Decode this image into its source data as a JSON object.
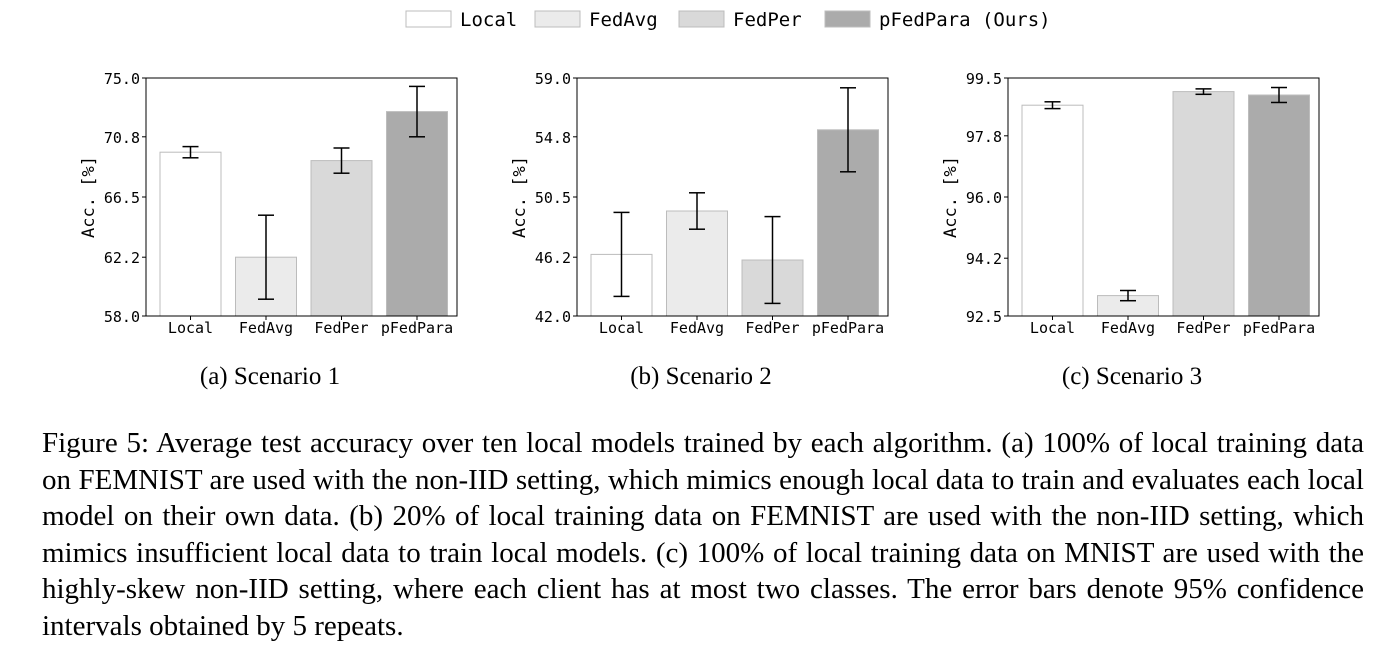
{
  "legend": [
    {
      "label": "Local",
      "color": "#ffffff"
    },
    {
      "label": "FedAvg",
      "color": "#ebebeb"
    },
    {
      "label": "FedPer",
      "color": "#d9d9d9"
    },
    {
      "label": "pFedPara (Ours)",
      "color": "#ababab"
    }
  ],
  "chart_data": [
    {
      "type": "bar",
      "subcaption": "(a) Scenario 1",
      "ylabel": "Acc. [%]",
      "ylim": [
        58.0,
        75.0
      ],
      "yticks": [
        "58.0",
        "62.2",
        "66.5",
        "70.8",
        "75.0"
      ],
      "categories": [
        "Local",
        "FedAvg",
        "FedPer",
        "pFedPara"
      ],
      "values": [
        69.7,
        62.2,
        69.1,
        72.6
      ],
      "errors": [
        0.4,
        3.0,
        0.9,
        1.8
      ],
      "grid": false
    },
    {
      "type": "bar",
      "subcaption": "(b) Scenario 2",
      "ylabel": "Acc. [%]",
      "ylim": [
        42.0,
        59.0
      ],
      "yticks": [
        "42.0",
        "46.2",
        "50.5",
        "54.8",
        "59.0"
      ],
      "categories": [
        "Local",
        "FedAvg",
        "FedPer",
        "pFedPara"
      ],
      "values": [
        46.4,
        49.5,
        46.0,
        55.3
      ],
      "errors": [
        3.0,
        1.3,
        3.1,
        3.0
      ],
      "grid": false
    },
    {
      "type": "bar",
      "subcaption": "(c) Scenario 3",
      "ylabel": "Acc. [%]",
      "ylim": [
        92.5,
        99.5
      ],
      "yticks": [
        "92.5",
        "94.2",
        "96.0",
        "97.8",
        "99.5"
      ],
      "categories": [
        "Local",
        "FedAvg",
        "FedPer",
        "pFedPara"
      ],
      "values": [
        98.7,
        93.1,
        99.1,
        99.0
      ],
      "errors": [
        0.1,
        0.15,
        0.08,
        0.22
      ],
      "grid": false
    }
  ],
  "caption": "Figure 5: Average test accuracy over ten local models trained by each algorithm. (a) 100% of local training data on FEMNIST are used with the non-IID setting, which mimics enough local data to train and evaluates each local model on their own data. (b) 20% of local training data on FEMNIST are used with the non-IID setting, which mimics insufficient local data to train local models. (c) 100% of local training data on MNIST are used with the highly-skew non-IID setting, where each client has at most two classes. The error bars denote 95% confidence intervals obtained by 5 repeats."
}
